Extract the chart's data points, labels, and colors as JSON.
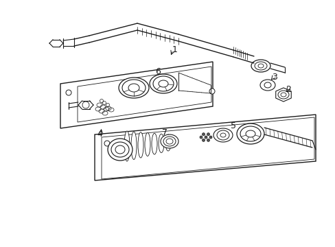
{
  "bg_color": "#ffffff",
  "line_color": "#1a1a1a",
  "label_color": "#1a1a1a",
  "figsize": [
    4.89,
    3.6
  ],
  "dpi": 100,
  "lw": 0.7
}
